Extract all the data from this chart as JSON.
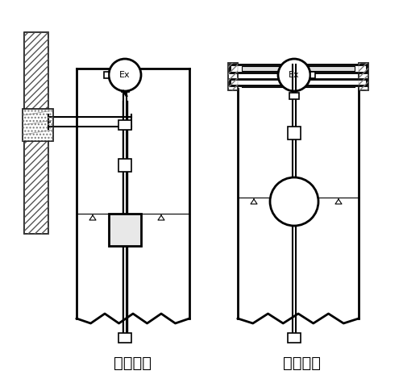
{
  "title_left": "架装固定",
  "title_right": "法兰固定",
  "bg_color": "#ffffff",
  "line_color": "#000000",
  "hatch_color": "#000000",
  "font_size_label": 14,
  "lw": 1.2,
  "lw_thick": 2.0
}
